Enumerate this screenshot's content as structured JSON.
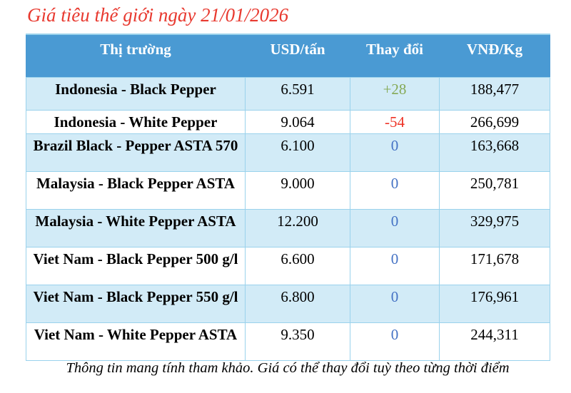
{
  "title": {
    "text": "Giá tiêu thế giới ngày 21/01/2026"
  },
  "table": {
    "headers": [
      "Thị trường",
      "USD/tấn",
      "Thay đổi",
      "VNĐ/Kg"
    ],
    "rows": [
      {
        "market": "Indonesia - Black Pepper",
        "usd_per_ton": "6.591",
        "change": "+28",
        "change_type": "positive",
        "vnd_per_kg": "188,477"
      },
      {
        "market": "Indonesia - White Pepper",
        "usd_per_ton": "9.064",
        "change": "-54",
        "change_type": "negative",
        "vnd_per_kg": "266,699"
      },
      {
        "market": "Brazil Black - Pepper ASTA 570",
        "usd_per_ton": "6.100",
        "change": "0",
        "change_type": "zero",
        "vnd_per_kg": "163,668"
      },
      {
        "market": "Malaysia - Black Pepper ASTA",
        "usd_per_ton": "9.000",
        "change": "0",
        "change_type": "zero",
        "vnd_per_kg": "250,781"
      },
      {
        "market": "Malaysia - White Pepper ASTA",
        "usd_per_ton": "12.200",
        "change": "0",
        "change_type": "zero",
        "vnd_per_kg": "329,975"
      },
      {
        "market": "Viet Nam - Black Pepper 500 g/l",
        "usd_per_ton": "6.600",
        "change": "0",
        "change_type": "zero",
        "vnd_per_kg": "171,678"
      },
      {
        "market": "Viet Nam - Black Pepper 550 g/l",
        "usd_per_ton": "6.800",
        "change": "0",
        "change_type": "zero",
        "vnd_per_kg": "176,961"
      },
      {
        "market": "Viet Nam - White Pepper ASTA",
        "usd_per_ton": "9.350",
        "change": "0",
        "change_type": "zero",
        "vnd_per_kg": "244,311"
      }
    ]
  },
  "footer": {
    "text": "Thông tin mang tính tham khảo. Giá có thể thay đổi tuỳ theo từng thời điểm"
  },
  "colors": {
    "title": "#e8392f",
    "header_bg": "#4a9ad3",
    "header_text": "#ffffff",
    "row_alt_bg": "#d2ebf7",
    "border": "#9ad2ec",
    "change_positive": "#85a955",
    "change_negative": "#ee3124",
    "change_zero": "#4472c4"
  }
}
